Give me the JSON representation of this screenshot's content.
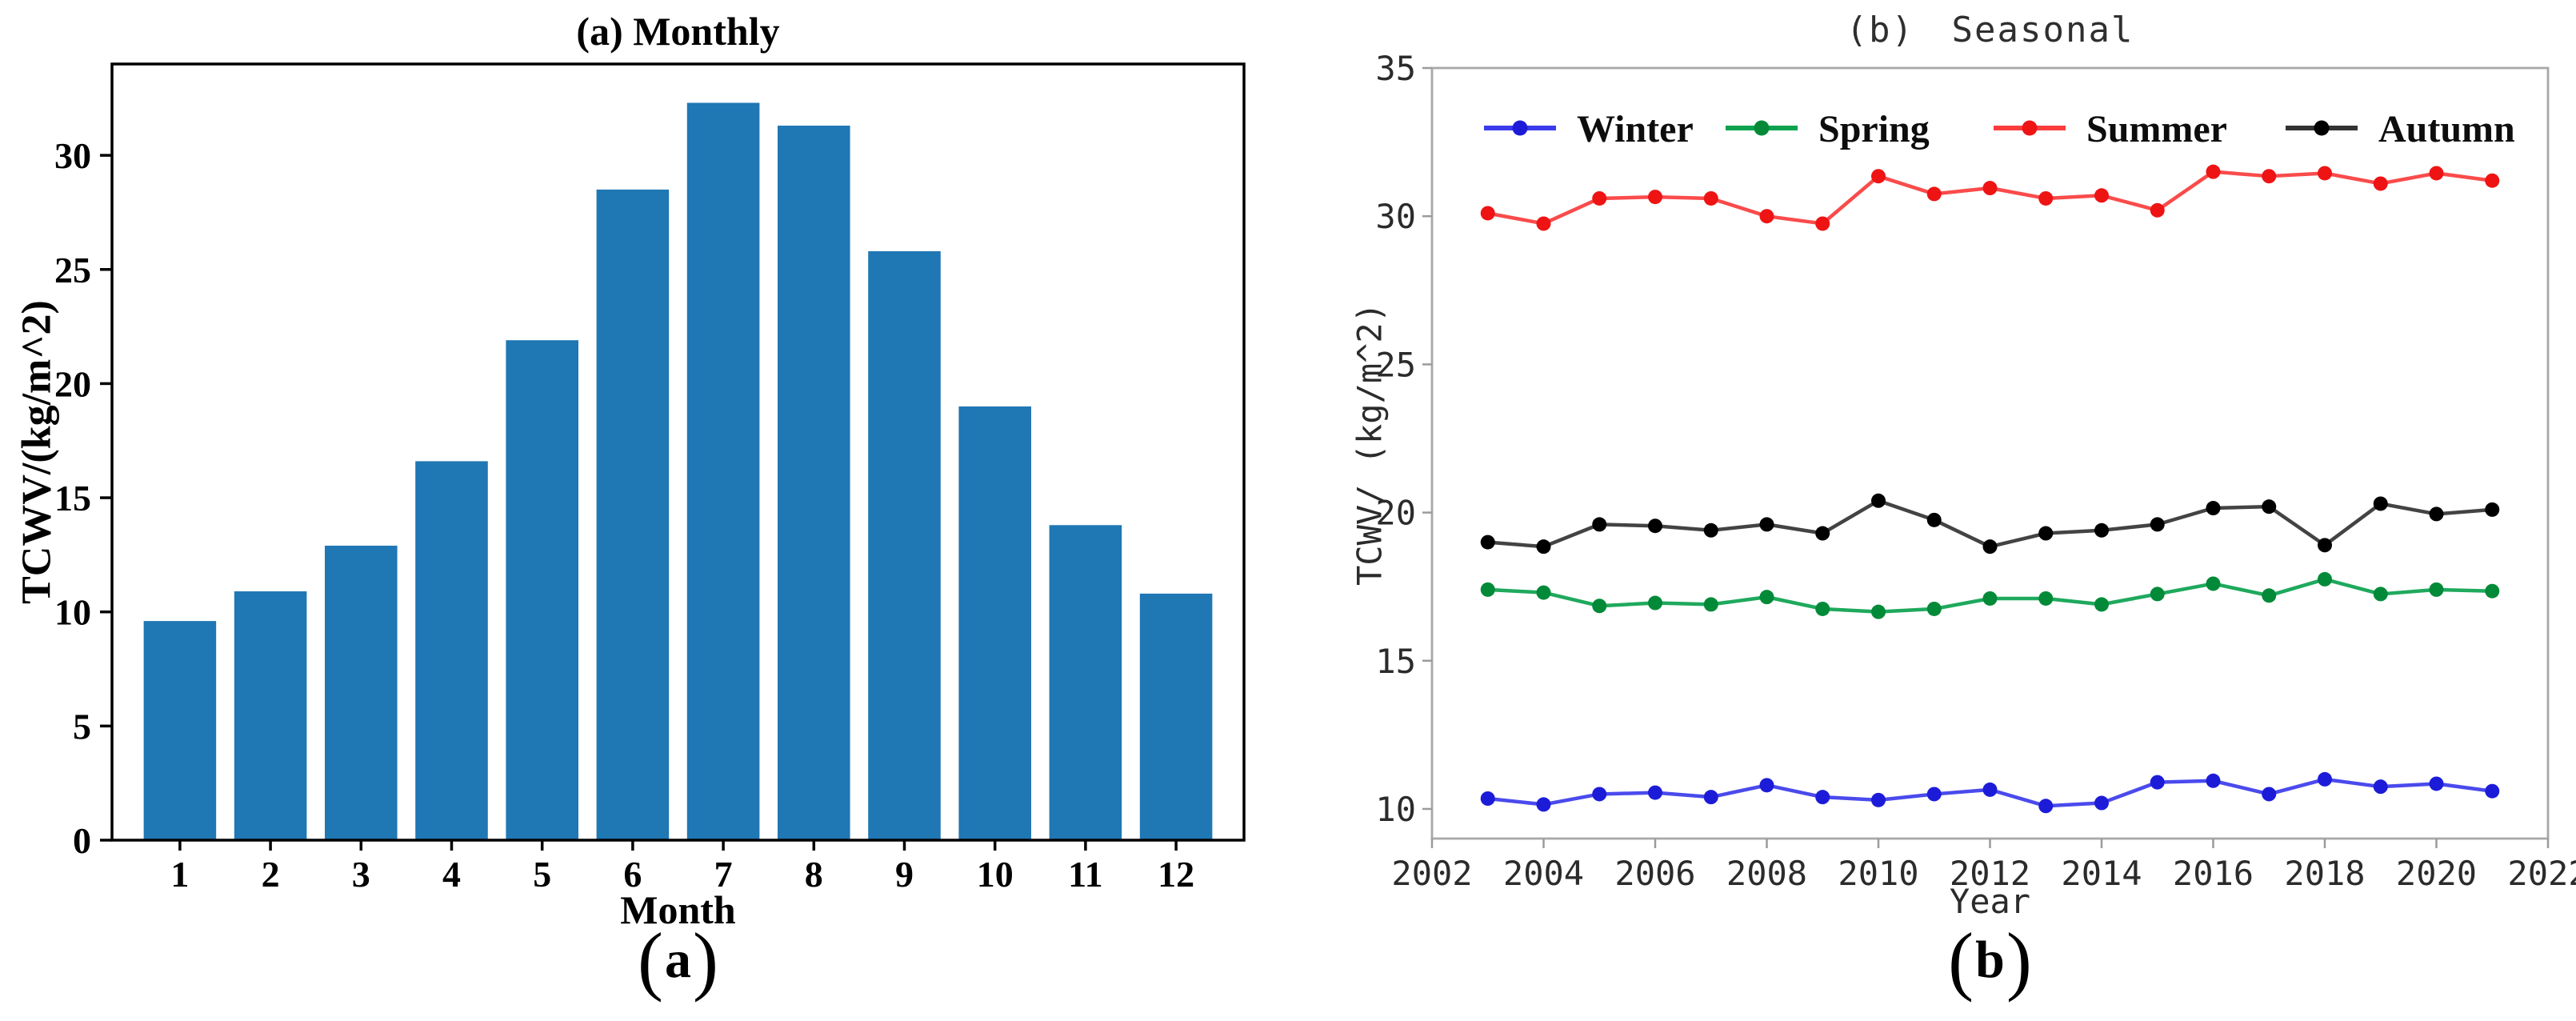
{
  "figure": {
    "panels": [
      {
        "id": "a",
        "title": "(a) Monthly",
        "ylabel": "TCWV/(kg/m^2)",
        "xlabel": "Month",
        "caption": {
          "open": "(",
          "letter": "a",
          "close": ")"
        }
      },
      {
        "id": "b",
        "title": "(b) Seasonal",
        "ylabel": "TCWV/ (kg/m^2)",
        "xlabel": "Year",
        "caption": {
          "open": "(",
          "letter": "b",
          "close": ")"
        }
      }
    ]
  },
  "chart_data": [
    {
      "type": "bar",
      "panel": "a",
      "title": "(a) Monthly",
      "xlabel": "Month",
      "ylabel": "TCWV/(kg/m^2)",
      "categories": [
        "1",
        "2",
        "3",
        "4",
        "5",
        "6",
        "7",
        "8",
        "9",
        "10",
        "11",
        "12"
      ],
      "values": [
        9.6,
        10.9,
        12.9,
        16.6,
        21.9,
        28.5,
        32.3,
        31.3,
        25.8,
        19.0,
        13.8,
        10.8
      ],
      "bar_color": "#1f77b4",
      "frame_color": "#000000",
      "xlim": [
        0.25,
        12.75
      ],
      "ylim": [
        0,
        34
      ],
      "yticks": [
        0,
        5,
        10,
        15,
        20,
        25,
        30
      ],
      "bar_width_units": 0.8,
      "grid": false,
      "legend": null
    },
    {
      "type": "line",
      "panel": "b",
      "title": "(b) Seasonal",
      "xlabel": "Year",
      "ylabel": "TCWV/ (kg/m^2)",
      "x": [
        2003,
        2004,
        2005,
        2006,
        2007,
        2008,
        2009,
        2010,
        2011,
        2012,
        2013,
        2014,
        2015,
        2016,
        2017,
        2018,
        2019,
        2020,
        2021
      ],
      "xlim": [
        2002,
        2022
      ],
      "ylim": [
        9,
        35
      ],
      "xticks": [
        2002,
        2004,
        2006,
        2008,
        2010,
        2012,
        2014,
        2016,
        2018,
        2020,
        2022
      ],
      "yticks": [
        10,
        15,
        20,
        25,
        30,
        35
      ],
      "frame_color": "#a8a8a8",
      "tick_color": "#9b9b9b",
      "grid": false,
      "legend": {
        "position": "top-inside",
        "labels": [
          "Winter",
          "Spring",
          "Summer",
          "Autumn"
        ]
      },
      "series": [
        {
          "name": "Winter",
          "color": "#3b3bec",
          "marker_color": "#1c1cd8",
          "values": [
            10.35,
            10.15,
            10.5,
            10.55,
            10.4,
            10.8,
            10.4,
            10.3,
            10.5,
            10.65,
            10.1,
            10.2,
            10.9,
            10.95,
            10.5,
            11.0,
            10.75,
            10.85,
            10.6
          ]
        },
        {
          "name": "Spring",
          "color": "#0ca24f",
          "marker_color": "#028a38",
          "values": [
            17.4,
            17.3,
            16.85,
            16.95,
            16.9,
            17.15,
            16.75,
            16.65,
            16.75,
            17.1,
            17.1,
            16.9,
            17.25,
            17.6,
            17.2,
            17.75,
            17.25,
            17.4,
            17.35
          ]
        },
        {
          "name": "Summer",
          "color": "#fa3c3c",
          "marker_color": "#ee1414",
          "values": [
            30.1,
            29.75,
            30.6,
            30.65,
            30.6,
            30.0,
            29.75,
            31.35,
            30.75,
            30.95,
            30.6,
            30.7,
            30.2,
            31.5,
            31.35,
            31.45,
            31.1,
            31.45,
            31.2
          ]
        },
        {
          "name": "Autumn",
          "color": "#333333",
          "marker_color": "#000000",
          "values": [
            19.0,
            18.85,
            19.6,
            19.55,
            19.4,
            19.6,
            19.3,
            20.4,
            19.75,
            18.85,
            19.3,
            19.4,
            19.6,
            20.15,
            20.2,
            18.9,
            20.3,
            19.95,
            20.1
          ]
        }
      ]
    }
  ]
}
